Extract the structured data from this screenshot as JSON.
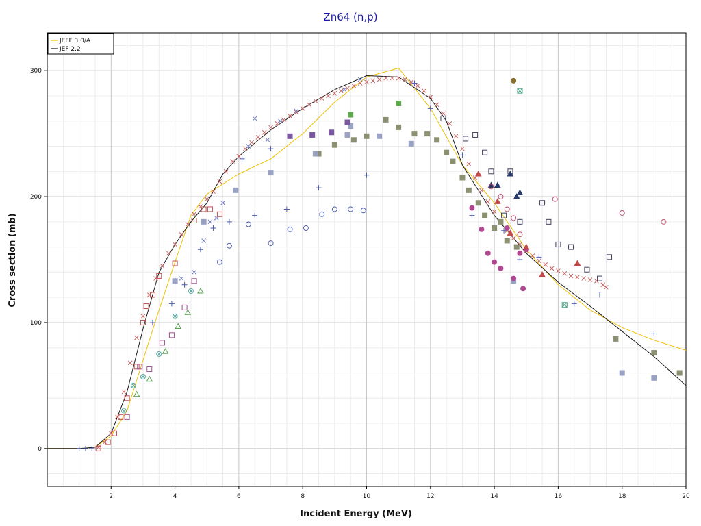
{
  "chart_data": {
    "type": "line",
    "title": "Zn64 (n,p)",
    "xlabel": "Incident Energy (MeV)",
    "ylabel": "Cross section (mb)",
    "xlim": [
      0,
      20
    ],
    "ylim": [
      -30,
      330
    ],
    "x_ticks": [
      2,
      4,
      6,
      8,
      10,
      12,
      14,
      16,
      18,
      20
    ],
    "y_ticks": [
      0,
      100,
      200,
      300
    ],
    "grid": true,
    "legend_position": "top-left",
    "series": [
      {
        "name": "JEFF 3.0/A",
        "kind": "line",
        "color": "#f0c000",
        "x": [
          0.0,
          1.0,
          1.5,
          2.0,
          2.5,
          3.0,
          3.5,
          4.0,
          4.5,
          5.0,
          6.0,
          7.0,
          8.0,
          9.0,
          10.0,
          11.0,
          12.0,
          13.0,
          14.0,
          15.0,
          16.0,
          17.0,
          18.0,
          19.0,
          20.0
        ],
        "y": [
          0,
          0,
          1,
          10,
          30,
          70,
          110,
          148,
          185,
          202,
          218,
          230,
          250,
          275,
          295,
          302,
          270,
          225,
          195,
          158,
          130,
          110,
          96,
          86,
          78
        ]
      },
      {
        "name": "JEF 2.2",
        "kind": "line",
        "color": "#1a1a1a",
        "x": [
          0.0,
          1.0,
          1.5,
          2.0,
          2.5,
          3.0,
          3.5,
          4.0,
          4.5,
          5.0,
          5.5,
          6.0,
          7.0,
          8.0,
          9.0,
          10.0,
          11.0,
          12.0,
          12.5,
          13.0,
          14.0,
          15.0,
          16.0,
          17.0,
          18.0,
          19.0,
          20.0
        ],
        "y": [
          0,
          0,
          1,
          12,
          45,
          95,
          140,
          162,
          180,
          195,
          218,
          232,
          253,
          270,
          285,
          296,
          295,
          278,
          260,
          225,
          185,
          155,
          132,
          113,
          93,
          73,
          50
        ]
      },
      {
        "kind": "markers",
        "marker": "x",
        "color": "#c86464",
        "x": [
          1.6,
          1.8,
          2.0,
          2.2,
          2.4,
          2.6,
          2.8,
          3.0,
          3.2,
          3.4,
          3.6,
          3.8,
          4.0,
          4.2,
          4.4,
          4.6,
          4.8,
          5.0,
          5.2,
          5.4,
          5.6,
          5.8,
          6.0,
          6.2,
          6.4,
          6.6,
          6.8,
          7.0,
          7.2,
          7.4,
          7.6,
          7.8,
          8.0,
          8.2,
          8.4,
          8.6,
          8.8,
          9.0,
          9.2,
          9.4,
          9.6,
          9.8,
          10.0,
          10.2,
          10.4,
          10.6,
          10.8,
          11.0,
          11.2,
          11.4,
          11.6,
          11.8,
          12.0,
          12.2,
          12.4,
          12.6,
          12.8,
          13.0,
          13.2,
          13.4,
          13.6,
          13.8,
          14.0,
          14.2,
          14.4,
          14.6,
          14.8,
          15.0,
          15.2,
          15.4,
          15.6,
          15.8,
          16.0,
          16.2,
          16.4,
          16.6,
          16.8,
          17.0,
          17.2,
          17.4,
          17.5
        ],
        "y": [
          1,
          5,
          12,
          25,
          45,
          68,
          88,
          105,
          122,
          135,
          145,
          155,
          162,
          170,
          178,
          186,
          192,
          198,
          204,
          212,
          220,
          228,
          232,
          238,
          243,
          247,
          251,
          255,
          258,
          261,
          264,
          267,
          270,
          273,
          276,
          278,
          280,
          282,
          284,
          286,
          288,
          290,
          291,
          292,
          293,
          294,
          294,
          294,
          293,
          291,
          288,
          284,
          279,
          273,
          266,
          258,
          248,
          238,
          226,
          215,
          205,
          196,
          188,
          180,
          173,
          167,
          162,
          157,
          153,
          149,
          146,
          143,
          141,
          139,
          137,
          136,
          135,
          134,
          133,
          130,
          128
        ]
      },
      {
        "kind": "markers",
        "marker": "x",
        "color": "#6c7cc0",
        "x": [
          4.2,
          4.6,
          4.9,
          5.1,
          5.3,
          5.5,
          6.3,
          6.5,
          6.9,
          7.3,
          7.8,
          9.3,
          9.8
        ],
        "y": [
          135,
          140,
          165,
          180,
          183,
          195,
          240,
          262,
          245,
          260,
          268,
          285,
          293
        ]
      },
      {
        "kind": "markers",
        "marker": "plus",
        "color": "#4a5ab0",
        "x": [
          1.0,
          1.2,
          1.4,
          3.3,
          3.9,
          4.3,
          4.8,
          5.2,
          5.7,
          6.1,
          6.5,
          7.0,
          7.5,
          8.5,
          10.0,
          11.5,
          12.0,
          13.0,
          13.3,
          14.3,
          14.8,
          15.4,
          16.5,
          17.3,
          19.0
        ],
        "y": [
          0,
          0,
          0,
          100,
          115,
          130,
          158,
          175,
          180,
          230,
          185,
          238,
          190,
          207,
          217,
          290,
          270,
          233,
          185,
          173,
          150,
          152,
          115,
          122,
          91
        ]
      },
      {
        "kind": "markers",
        "marker": "circle",
        "color": "#5060b8",
        "x": [
          5.4,
          5.7,
          6.3,
          7.0,
          7.6,
          8.1,
          8.6,
          9.0,
          9.5,
          9.9
        ],
        "y": [
          148,
          161,
          178,
          163,
          174,
          175,
          186,
          190,
          190,
          189
        ]
      },
      {
        "kind": "markers",
        "marker": "square",
        "color": "#c05050",
        "x": [
          1.6,
          1.9,
          2.1,
          2.3,
          2.5,
          2.8,
          3.0,
          3.1,
          3.3,
          3.5,
          4.0,
          4.6,
          4.9,
          5.1,
          5.4
        ],
        "y": [
          0,
          5,
          12,
          25,
          40,
          65,
          100,
          113,
          122,
          137,
          147,
          181,
          190,
          190,
          186
        ]
      },
      {
        "kind": "markers",
        "marker": "square",
        "color": "#a05090",
        "x": [
          2.5,
          2.9,
          3.2,
          3.6,
          3.9,
          4.3,
          4.6
        ],
        "y": [
          25,
          65,
          63,
          84,
          90,
          112,
          133
        ]
      },
      {
        "kind": "markers",
        "marker": "square",
        "color": "#404060",
        "x": [
          12.4,
          13.1,
          13.4,
          13.7,
          13.9,
          14.3,
          14.5,
          14.8,
          15.5,
          15.7,
          16.0,
          16.4,
          16.9,
          17.3,
          17.6
        ],
        "y": [
          262,
          246,
          249,
          235,
          220,
          185,
          220,
          180,
          195,
          180,
          162,
          160,
          142,
          135,
          152
        ]
      },
      {
        "kind": "markers",
        "marker": "filled-square",
        "color": "#8a9070",
        "x": [
          8.5,
          9.0,
          9.6,
          10.0,
          10.6,
          11.0,
          11.5,
          11.9,
          12.2,
          12.5,
          12.7,
          13.0,
          13.2,
          13.5,
          13.7,
          14.0,
          14.2,
          14.4,
          14.7,
          17.8,
          19.0,
          19.8
        ],
        "y": [
          234,
          241,
          245,
          248,
          261,
          255,
          250,
          250,
          245,
          235,
          228,
          215,
          205,
          195,
          185,
          175,
          180,
          165,
          160,
          87,
          76,
          60
        ]
      },
      {
        "kind": "markers",
        "marker": "filled-square",
        "color": "#9aa2c4",
        "x": [
          4.0,
          4.9,
          5.9,
          7.0,
          8.4,
          9.4,
          9.5,
          10.4,
          11.4,
          14.6,
          18.0,
          19.0
        ],
        "y": [
          133,
          180,
          205,
          219,
          234,
          249,
          256,
          248,
          242,
          133,
          60,
          56
        ]
      },
      {
        "kind": "markers",
        "marker": "filled-square",
        "color": "#7a58a0",
        "x": [
          7.6,
          8.3,
          8.9,
          9.4
        ],
        "y": [
          248,
          249,
          251,
          259
        ]
      },
      {
        "kind": "markers",
        "marker": "filled-square",
        "color": "#60a850",
        "x": [
          9.5,
          11.0
        ],
        "y": [
          265,
          274
        ]
      },
      {
        "kind": "markers",
        "marker": "filled-circle",
        "color": "#b04890",
        "x": [
          13.3,
          13.6,
          13.8,
          14.0,
          14.2,
          14.4,
          14.6,
          14.8,
          14.9,
          15.0
        ],
        "y": [
          191,
          174,
          155,
          148,
          143,
          175,
          135,
          155,
          127,
          158
        ]
      },
      {
        "kind": "markers",
        "marker": "filled-triangle",
        "color": "#2a3a6a",
        "x": [
          13.9,
          14.1,
          14.5,
          14.7,
          14.8
        ],
        "y": [
          209,
          209,
          218,
          200,
          203
        ]
      },
      {
        "kind": "markers",
        "marker": "filled-triangle",
        "color": "#c04848",
        "x": [
          13.5,
          14.1,
          14.5,
          15.0,
          15.5,
          16.6
        ],
        "y": [
          218,
          196,
          171,
          160,
          138,
          147
        ]
      },
      {
        "kind": "markers",
        "marker": "triangle",
        "color": "#58a050",
        "x": [
          2.8,
          3.2,
          3.7,
          4.1,
          4.4,
          4.8
        ],
        "y": [
          43,
          55,
          77,
          97,
          108,
          125
        ]
      },
      {
        "kind": "markers",
        "marker": "circle-cross",
        "color": "#5aa8a0",
        "x": [
          2.4,
          2.7,
          3.0,
          3.5,
          4.0,
          4.5
        ],
        "y": [
          30,
          50,
          57,
          75,
          105,
          125
        ]
      },
      {
        "kind": "markers",
        "marker": "circle",
        "color": "#c05070",
        "x": [
          13.9,
          14.2,
          14.4,
          14.6,
          14.8,
          15.9,
          18.0,
          19.3
        ],
        "y": [
          208,
          200,
          190,
          183,
          170,
          198,
          187,
          180
        ]
      },
      {
        "kind": "markers",
        "marker": "filled-circle",
        "color": "#8a7030",
        "x": [
          14.6
        ],
        "y": [
          292
        ]
      },
      {
        "kind": "markers",
        "marker": "square-cross",
        "color": "#40a080",
        "x": [
          14.8,
          16.2
        ],
        "y": [
          284,
          114
        ]
      }
    ]
  }
}
